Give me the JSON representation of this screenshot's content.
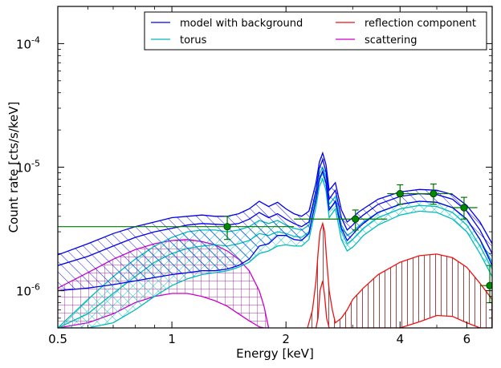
{
  "chart_data": {
    "type": "line",
    "xlabel": "Energy [keV]",
    "ylabel": "Count rate [cts/s/keV]",
    "xscale": "log",
    "yscale": "log",
    "xlim": [
      0.5,
      7.0
    ],
    "ylim": [
      5e-07,
      0.0002
    ],
    "grid": false,
    "legend_position": "top-right",
    "x_ticks": [
      {
        "value": 0.5,
        "label": "0.5"
      },
      {
        "value": 1,
        "label": "1"
      },
      {
        "value": 2,
        "label": "2"
      },
      {
        "value": 4,
        "label": "4"
      },
      {
        "value": 6,
        "label": "6"
      }
    ],
    "y_ticks": [
      {
        "value": 1e-06,
        "base": "10",
        "exp": "-6"
      },
      {
        "value": 1e-05,
        "base": "10",
        "exp": "-5"
      },
      {
        "value": 0.0001,
        "base": "10",
        "exp": "-4"
      }
    ],
    "series": [
      {
        "name": "model with background",
        "color": "#0000ee",
        "hatch": "diagonal",
        "x": [
          0.5,
          0.6,
          0.7,
          0.8,
          0.9,
          1.0,
          1.1,
          1.2,
          1.3,
          1.4,
          1.5,
          1.6,
          1.7,
          1.8,
          1.9,
          2.0,
          2.1,
          2.2,
          2.3,
          2.4,
          2.45,
          2.5,
          2.55,
          2.6,
          2.7,
          2.8,
          2.9,
          3.0,
          3.1,
          3.2,
          3.5,
          4.0,
          4.5,
          5.0,
          5.5,
          6.0,
          6.5,
          7.0
        ],
        "upper": [
          1.95e-06,
          2.4e-06,
          2.9e-06,
          3.3e-06,
          3.6e-06,
          3.9e-06,
          4e-06,
          4.1e-06,
          4e-06,
          4e-06,
          4.2e-06,
          4.6e-06,
          5.3e-06,
          4.8e-06,
          5.2e-06,
          4.6e-06,
          4.2e-06,
          4e-06,
          4.4e-06,
          7.5e-06,
          1.1e-05,
          1.3e-05,
          1.05e-05,
          6.5e-06,
          7.5e-06,
          4.5e-06,
          3.6e-06,
          3.9e-06,
          4.3e-06,
          4.6e-06,
          5.5e-06,
          6.3e-06,
          6.6e-06,
          6.5e-06,
          6e-06,
          4.9e-06,
          3.6e-06,
          2.4e-06
        ],
        "model": [
          1.6e-06,
          1.9e-06,
          2.3e-06,
          2.7e-06,
          3e-06,
          3.2e-06,
          3.4e-06,
          3.5e-06,
          3.45e-06,
          3.4e-06,
          3.5e-06,
          3.8e-06,
          4.3e-06,
          3.9e-06,
          4.2e-06,
          3.8e-06,
          3.5e-06,
          3.3e-06,
          3.6e-06,
          6.5e-06,
          9.8e-06,
          1.15e-05,
          9.2e-06,
          5.5e-06,
          6.5e-06,
          3.9e-06,
          3.1e-06,
          3.4e-06,
          3.8e-06,
          4.1e-06,
          5e-06,
          5.8e-06,
          6.1e-06,
          6e-06,
          5.5e-06,
          4.4e-06,
          3.1e-06,
          2e-06
        ],
        "lower": [
          1e-06,
          1.05e-06,
          1.12e-06,
          1.2e-06,
          1.28e-06,
          1.35e-06,
          1.4e-06,
          1.45e-06,
          1.45e-06,
          1.5e-06,
          1.6e-06,
          1.8e-06,
          2.3e-06,
          2.4e-06,
          2.8e-06,
          2.8e-06,
          2.6e-06,
          2.55e-06,
          2.9e-06,
          5.5e-06,
          8e-06,
          9.3e-06,
          7.5e-06,
          4.5e-06,
          5.3e-06,
          3.2e-06,
          2.55e-06,
          2.85e-06,
          3.2e-06,
          3.5e-06,
          4.3e-06,
          5e-06,
          5.3e-06,
          5.2e-06,
          4.7e-06,
          3.8e-06,
          2.6e-06,
          1.6e-06
        ]
      },
      {
        "name": "torus",
        "color": "#00bbbb",
        "hatch": "crosshatch",
        "x": [
          0.5,
          0.6,
          0.7,
          0.8,
          0.9,
          1.0,
          1.1,
          1.2,
          1.3,
          1.4,
          1.5,
          1.6,
          1.7,
          1.8,
          1.9,
          2.0,
          2.1,
          2.2,
          2.3,
          2.4,
          2.45,
          2.5,
          2.55,
          2.6,
          2.7,
          2.8,
          2.9,
          3.0,
          3.1,
          3.2,
          3.5,
          4.0,
          4.5,
          5.0,
          5.5,
          6.0,
          6.5,
          7.0
        ],
        "upper": [
          5e-07,
          8.5e-07,
          1.3e-06,
          1.8e-06,
          2.3e-06,
          2.7e-06,
          3e-06,
          3.1e-06,
          3.1e-06,
          3e-06,
          3.1e-06,
          3.3e-06,
          3.7e-06,
          3.5e-06,
          3.7e-06,
          3.4e-06,
          3.2e-06,
          3.1e-06,
          3.4e-06,
          6e-06,
          8.8e-06,
          1e-05,
          8.3e-06,
          5e-06,
          5.8e-06,
          3.4e-06,
          2.8e-06,
          3e-06,
          3.3e-06,
          3.6e-06,
          4.3e-06,
          5e-06,
          5.3e-06,
          5.2e-06,
          4.7e-06,
          3.8e-06,
          2.6e-06,
          1.7e-06
        ],
        "model": [
          5e-07,
          6.5e-07,
          9.5e-07,
          1.3e-06,
          1.7e-06,
          2e-06,
          2.2e-06,
          2.3e-06,
          2.35e-06,
          2.3e-06,
          2.4e-06,
          2.55e-06,
          2.9e-06,
          2.8e-06,
          3e-06,
          2.9e-06,
          2.75e-06,
          2.7e-06,
          3e-06,
          5.4e-06,
          7.9e-06,
          9e-06,
          7.4e-06,
          4.5e-06,
          5.2e-06,
          3e-06,
          2.4e-06,
          2.6e-06,
          2.9e-06,
          3.2e-06,
          3.9e-06,
          4.6e-06,
          4.9e-06,
          4.8e-06,
          4.3e-06,
          3.4e-06,
          2.3e-06,
          1.5e-06
        ],
        "lower": [
          5e-07,
          5e-07,
          5.5e-07,
          7e-07,
          9e-07,
          1.1e-06,
          1.25e-06,
          1.35e-06,
          1.4e-06,
          1.45e-06,
          1.55e-06,
          1.7e-06,
          2e-06,
          2.1e-06,
          2.3e-06,
          2.35e-06,
          2.3e-06,
          2.3e-06,
          2.6e-06,
          4.8e-06,
          7e-06,
          8e-06,
          6.5e-06,
          3.9e-06,
          4.6e-06,
          2.6e-06,
          2.1e-06,
          2.25e-06,
          2.5e-06,
          2.8e-06,
          3.4e-06,
          4.1e-06,
          4.4e-06,
          4.3e-06,
          3.8e-06,
          3e-06,
          2e-06,
          1.3e-06
        ]
      },
      {
        "name": "reflection component",
        "color": "#ee1111",
        "hatch": "vertical",
        "x": [
          2.28,
          2.35,
          2.4,
          2.43,
          2.46,
          2.5,
          2.53,
          2.56,
          2.6,
          2.65,
          2.7,
          2.8,
          2.9,
          3.0,
          3.2,
          3.5,
          4.0,
          4.5,
          5.0,
          5.5,
          6.0,
          6.5,
          7.0
        ],
        "upper": [
          5e-07,
          7e-07,
          1.2e-06,
          2e-06,
          3e-06,
          3.5e-06,
          3e-06,
          1.8e-06,
          1e-06,
          7e-07,
          5.5e-07,
          6e-07,
          7e-07,
          8.5e-07,
          1.05e-06,
          1.35e-06,
          1.7e-06,
          1.92e-06,
          1.98e-06,
          1.85e-06,
          1.55e-06,
          1.15e-06,
          8.5e-07
        ],
        "lower": [
          5e-07,
          5e-07,
          5e-07,
          6e-07,
          1e-06,
          1.2e-06,
          9e-07,
          6e-07,
          5e-07,
          5e-07,
          5e-07,
          5e-07,
          5e-07,
          5e-07,
          5e-07,
          5e-07,
          5e-07,
          5.6e-07,
          6.3e-07,
          6.2e-07,
          5.5e-07,
          5e-07,
          5e-07
        ]
      },
      {
        "name": "scattering",
        "color": "#cc00cc",
        "hatch": "grid",
        "x": [
          0.5,
          0.6,
          0.7,
          0.8,
          0.9,
          1.0,
          1.1,
          1.2,
          1.3,
          1.4,
          1.5,
          1.6,
          1.7,
          1.75,
          1.8
        ],
        "upper": [
          1.05e-06,
          1.4e-06,
          1.8e-06,
          2.15e-06,
          2.4e-06,
          2.55e-06,
          2.6e-06,
          2.5e-06,
          2.35e-06,
          2.1e-06,
          1.8e-06,
          1.45e-06,
          1e-06,
          7.5e-07,
          5e-07
        ],
        "lower": [
          5e-07,
          5.5e-07,
          6.5e-07,
          8e-07,
          9e-07,
          9.5e-07,
          9.5e-07,
          9e-07,
          8.3e-07,
          7.5e-07,
          6.5e-07,
          5.7e-07,
          5.1e-07,
          5e-07,
          5e-07
        ]
      }
    ],
    "data_points": {
      "color": "#007700",
      "points": [
        {
          "x": 1.4,
          "y": 3.3e-06,
          "xlo": 0.5,
          "xhi": 2.1,
          "ylo": 2.6e-06,
          "yhi": 4e-06
        },
        {
          "x": 3.05,
          "y": 3.8e-06,
          "xlo": 2.1,
          "xhi": 3.7,
          "ylo": 3.1e-06,
          "yhi": 4.5e-06
        },
        {
          "x": 4.0,
          "y": 6.1e-06,
          "xlo": 3.7,
          "xhi": 4.5,
          "ylo": 5e-06,
          "yhi": 7.2e-06
        },
        {
          "x": 4.9,
          "y": 6.1e-06,
          "xlo": 4.5,
          "xhi": 5.5,
          "ylo": 5e-06,
          "yhi": 7.3e-06
        },
        {
          "x": 5.9,
          "y": 4.7e-06,
          "xlo": 5.5,
          "xhi": 6.4,
          "ylo": 3.8e-06,
          "yhi": 5.7e-06
        },
        {
          "x": 6.9,
          "y": 1.1e-06,
          "xlo": 6.5,
          "xhi": 7.0,
          "ylo": 8e-07,
          "yhi": 1.6e-06
        }
      ]
    }
  }
}
